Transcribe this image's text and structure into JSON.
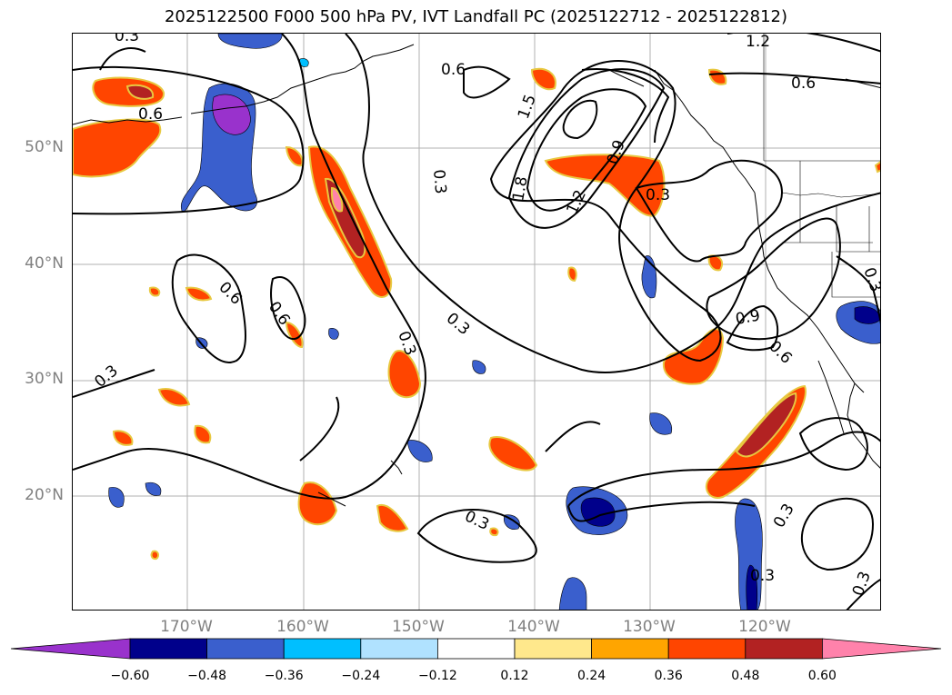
{
  "title": "2025122500 F000 500 hPa PV, IVT Landfall PC (2025122712 - 2025122812)",
  "lat_labels": [
    "50°N",
    "40°N",
    "30°N",
    "20°N"
  ],
  "lon_labels": [
    "170°W",
    "160°W",
    "150°W",
    "140°W",
    "130°W",
    "120°W"
  ],
  "contour_labels": [
    "0.3",
    "0.6",
    "0.6",
    "0.6",
    "1.2",
    "0.6",
    "1.5",
    "1.8",
    "1.2",
    "0.9",
    "0.3",
    "0.3",
    "0.6",
    "0.3",
    "0.3",
    "0.3",
    "0.3",
    "0.3",
    "0.9",
    "0.6",
    "0.3",
    "0.3",
    "0.3",
    "0.3",
    "0.3"
  ],
  "colorbar": {
    "ticks": [
      "−0.60",
      "−0.48",
      "−0.36",
      "−0.24",
      "−0.12",
      "0.12",
      "0.24",
      "0.36",
      "0.48",
      "0.60"
    ],
    "colors": [
      "#9932cc",
      "#00008b",
      "#3a5fcd",
      "#00bfff",
      "#b0e2ff",
      "#ffffff",
      "#ffe88c",
      "#ffa500",
      "#ff4500",
      "#b22222",
      "#ff82ab"
    ]
  },
  "colors": {
    "negative_strong": "#3a5fcd",
    "negative_core": "#00008b",
    "negative_extreme": "#9932cc",
    "positive": "#ff4500",
    "positive_core": "#b22222",
    "positive_extreme": "#ff82ab",
    "halo_pos": "#ffe88c",
    "halo_neg": "#00bfff"
  }
}
